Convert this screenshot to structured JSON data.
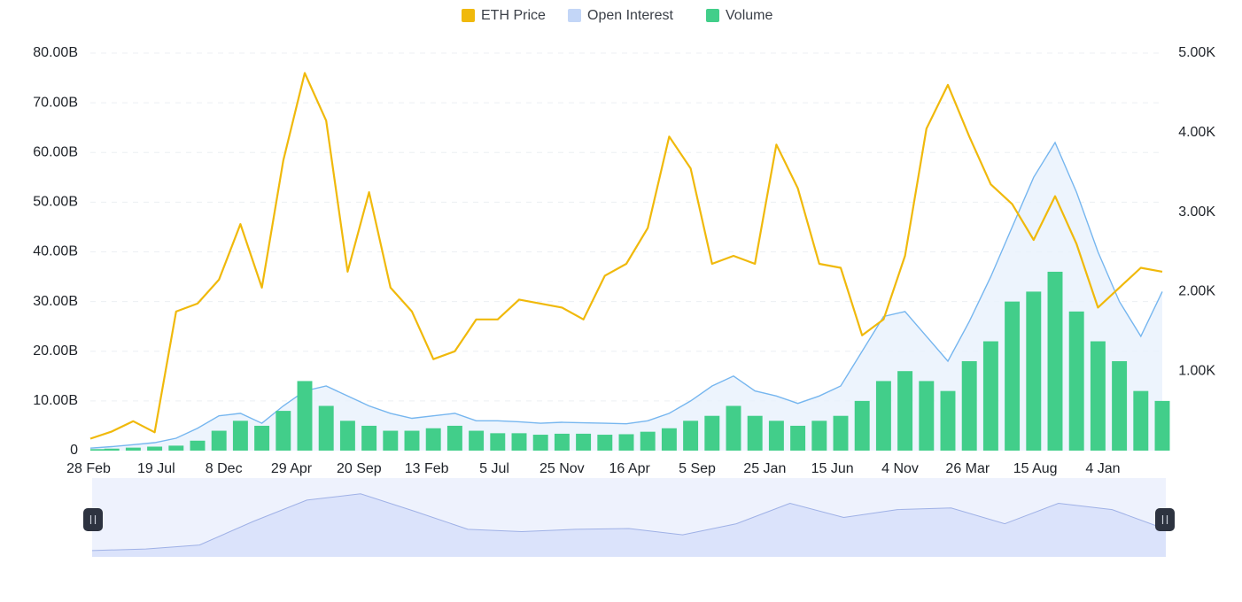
{
  "colors": {
    "eth_price": "#f0b90b",
    "open_interest_line": "#76b6ef",
    "open_interest_fill": "#e8f1fd",
    "open_interest_legend": "#c3d6f7",
    "volume": "#42ce8a",
    "navigator_fill": "#dbe3fb",
    "navigator_bg": "#eef2fd",
    "handle": "#2d3340"
  },
  "legend": [
    {
      "label": "ETH Price",
      "color_key": "eth_price"
    },
    {
      "label": "Open Interest",
      "color_key": "open_interest_legend"
    },
    {
      "label": "Volume",
      "color_key": "volume"
    }
  ],
  "chart_data": {
    "type": "line",
    "legend_placement": "top-center",
    "grid": true,
    "x_ticks": [
      "28 Feb",
      "19 Jul",
      "8 Dec",
      "29 Apr",
      "20 Sep",
      "13 Feb",
      "5 Jul",
      "25 Nov",
      "16 Apr",
      "5 Sep",
      "25 Jan",
      "15 Jun",
      "4 Nov",
      "26 Mar",
      "15 Aug",
      "4 Jan"
    ],
    "y_left_ticks": [
      "0",
      "10.00B",
      "20.00B",
      "30.00B",
      "40.00B",
      "50.00B",
      "60.00B",
      "70.00B",
      "80.00B"
    ],
    "y_left_range": [
      0,
      80
    ],
    "y_left_unit": "B",
    "y_right_ticks": [
      "1.00K",
      "2.00K",
      "3.00K",
      "4.00K",
      "5.00K"
    ],
    "y_right_range": [
      0,
      5000
    ],
    "series": [
      {
        "name": "ETH Price",
        "axis": "right",
        "style": "line",
        "color_key": "eth_price",
        "x": [
          0,
          0.02,
          0.04,
          0.06,
          0.08,
          0.1,
          0.12,
          0.14,
          0.16,
          0.18,
          0.2,
          0.22,
          0.24,
          0.26,
          0.28,
          0.3,
          0.32,
          0.34,
          0.36,
          0.38,
          0.4,
          0.42,
          0.44,
          0.46,
          0.48,
          0.5,
          0.52,
          0.54,
          0.56,
          0.58,
          0.6,
          0.62,
          0.64,
          0.66,
          0.68,
          0.7,
          0.72,
          0.74,
          0.76,
          0.78,
          0.8,
          0.82,
          0.84,
          0.86,
          0.88,
          0.9,
          0.92,
          0.94,
          0.96,
          0.98,
          1
        ],
        "values": [
          150,
          240,
          370,
          230,
          1750,
          1850,
          2150,
          2850,
          2050,
          3650,
          4750,
          4150,
          2250,
          3250,
          2050,
          1750,
          1150,
          1250,
          1650,
          1650,
          1900,
          1850,
          1800,
          1650,
          2200,
          2350,
          2800,
          3950,
          3550,
          2350,
          2450,
          2350,
          3850,
          3300,
          2350,
          2300,
          1450,
          1650,
          2450,
          4050,
          4600,
          3950,
          3350,
          3100,
          2650,
          3200,
          2600,
          1800,
          2050,
          2300,
          2250
        ]
      },
      {
        "name": "Open Interest",
        "axis": "left",
        "style": "area",
        "color_key": "open_interest_line",
        "x": [
          0,
          0.02,
          0.04,
          0.06,
          0.08,
          0.1,
          0.12,
          0.14,
          0.16,
          0.18,
          0.2,
          0.22,
          0.24,
          0.26,
          0.28,
          0.3,
          0.32,
          0.34,
          0.36,
          0.38,
          0.4,
          0.42,
          0.44,
          0.46,
          0.48,
          0.5,
          0.52,
          0.54,
          0.56,
          0.58,
          0.6,
          0.62,
          0.64,
          0.66,
          0.68,
          0.7,
          0.72,
          0.74,
          0.76,
          0.78,
          0.8,
          0.82,
          0.84,
          0.86,
          0.88,
          0.9,
          0.92,
          0.94,
          0.96,
          0.98,
          1
        ],
        "values": [
          0.5,
          0.8,
          1.2,
          1.6,
          2.5,
          4.5,
          7,
          7.5,
          5.5,
          9,
          12,
          13,
          11,
          9,
          7.5,
          6.5,
          7,
          7.5,
          6,
          6,
          5.8,
          5.5,
          5.7,
          5.6,
          5.5,
          5.4,
          6,
          7.5,
          10,
          13,
          15,
          12,
          11,
          9.5,
          11,
          13,
          20,
          27,
          28,
          23,
          18,
          26,
          35,
          45,
          55,
          62,
          52,
          40,
          30,
          23,
          32
        ]
      },
      {
        "name": "Volume",
        "axis": "left",
        "style": "bars",
        "color_key": "volume",
        "x": [
          0,
          0.02,
          0.04,
          0.06,
          0.08,
          0.1,
          0.12,
          0.14,
          0.16,
          0.18,
          0.2,
          0.22,
          0.24,
          0.26,
          0.28,
          0.3,
          0.32,
          0.34,
          0.36,
          0.38,
          0.4,
          0.42,
          0.44,
          0.46,
          0.48,
          0.5,
          0.52,
          0.54,
          0.56,
          0.58,
          0.6,
          0.62,
          0.64,
          0.66,
          0.68,
          0.7,
          0.72,
          0.74,
          0.76,
          0.78,
          0.8,
          0.82,
          0.84,
          0.86,
          0.88,
          0.9,
          0.92,
          0.94,
          0.96,
          0.98,
          1
        ],
        "values": [
          0.3,
          0.4,
          0.6,
          0.8,
          1,
          2,
          4,
          6,
          5,
          8,
          14,
          9,
          6,
          5,
          4,
          4,
          4.5,
          5,
          4,
          3.5,
          3.5,
          3.2,
          3.4,
          3.4,
          3.2,
          3.3,
          3.8,
          4.5,
          6,
          7,
          9,
          7,
          6,
          5,
          6,
          7,
          10,
          14,
          16,
          14,
          12,
          18,
          22,
          30,
          32,
          36,
          28,
          22,
          18,
          12,
          10
        ]
      }
    ],
    "navigator": {
      "x": [
        0,
        0.05,
        0.1,
        0.15,
        0.2,
        0.25,
        0.3,
        0.35,
        0.4,
        0.45,
        0.5,
        0.55,
        0.6,
        0.65,
        0.7,
        0.75,
        0.8,
        0.85,
        0.9,
        0.95,
        1
      ],
      "values": [
        0.08,
        0.1,
        0.15,
        0.45,
        0.72,
        0.8,
        0.58,
        0.35,
        0.32,
        0.35,
        0.36,
        0.28,
        0.42,
        0.68,
        0.5,
        0.6,
        0.62,
        0.42,
        0.68,
        0.6,
        0.35
      ]
    }
  }
}
